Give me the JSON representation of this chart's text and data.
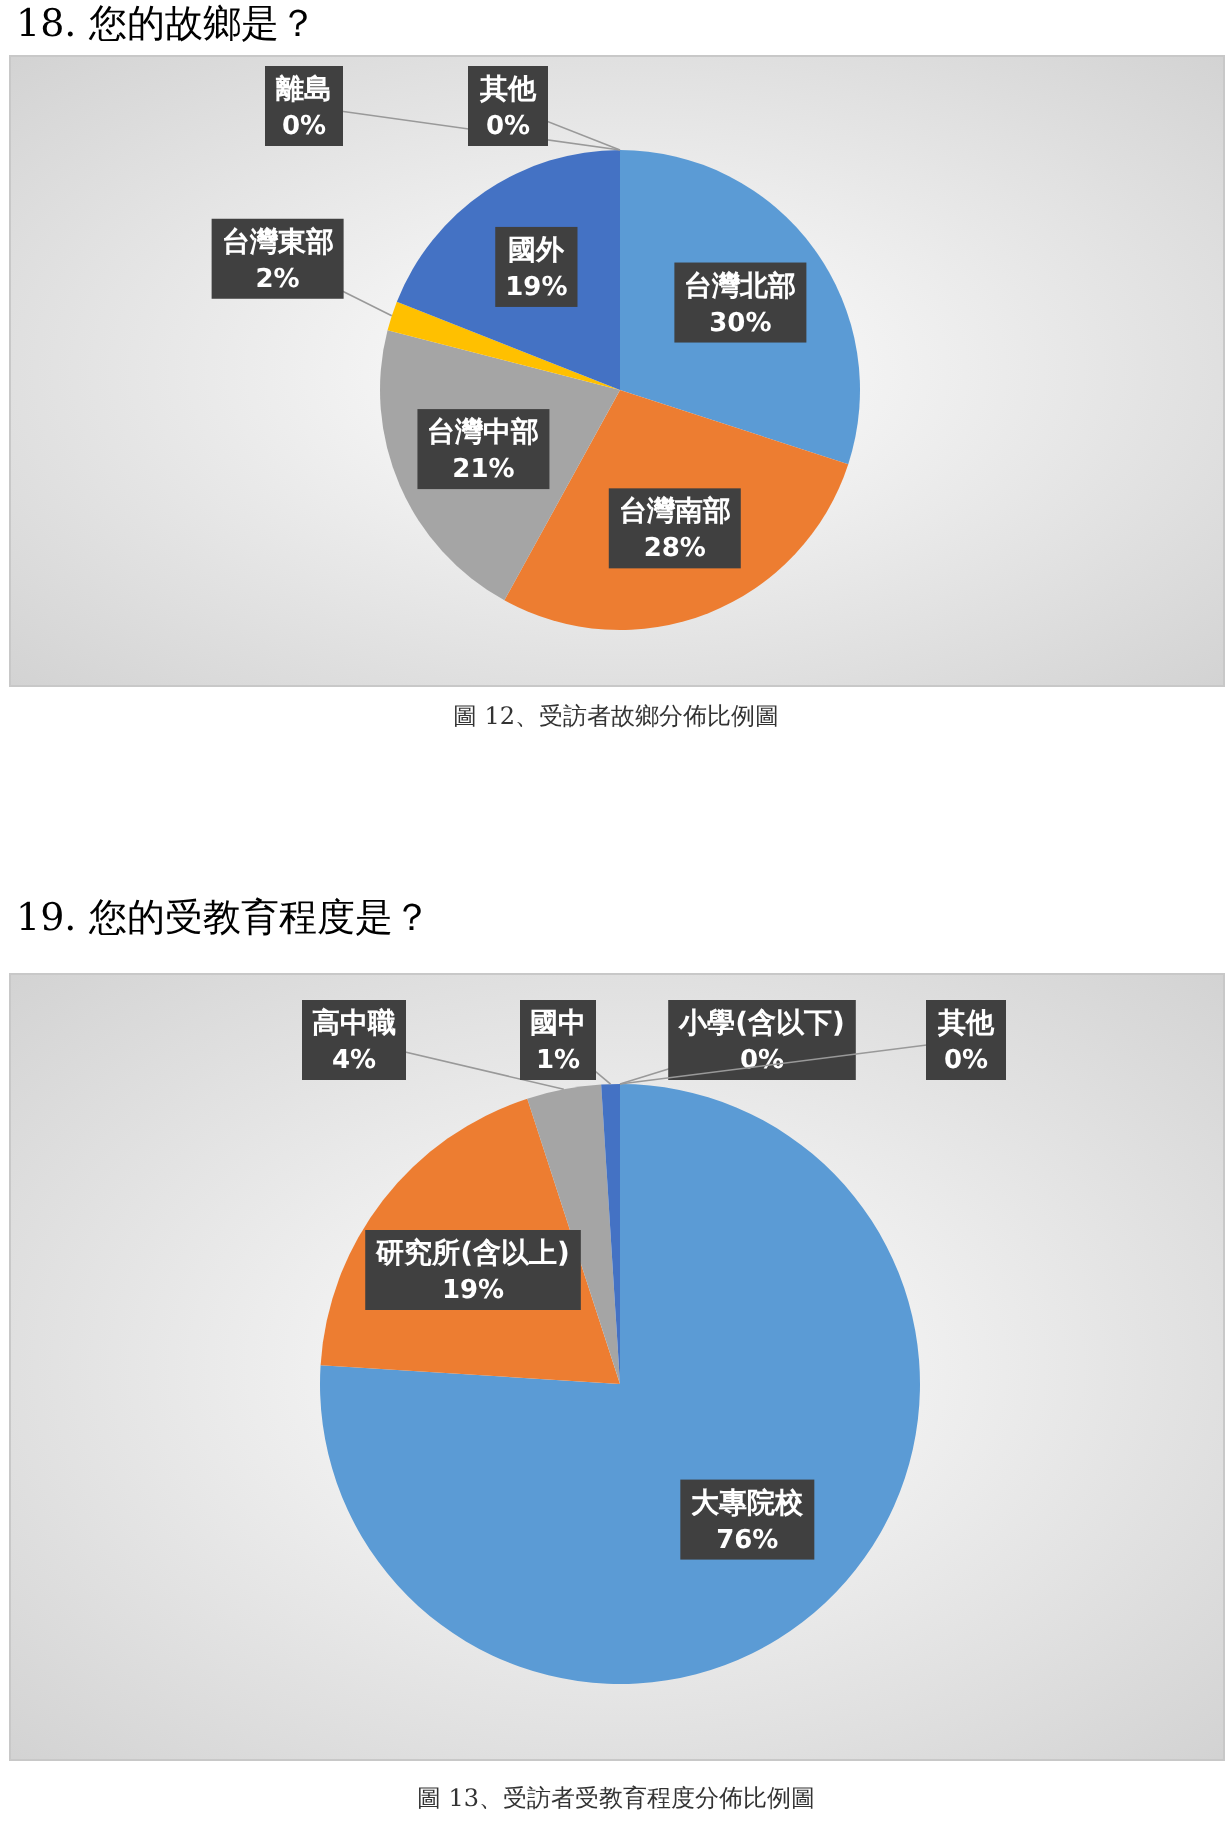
{
  "chart_data": [
    {
      "type": "pie",
      "title": "18. 您的故鄉是？",
      "categories": [
        "台灣北部",
        "台灣南部",
        "台灣中部",
        "台灣東部",
        "國外",
        "離島",
        "其他"
      ],
      "values": [
        30,
        28,
        21,
        2,
        19,
        0,
        0
      ],
      "colors": [
        "#5b9bd5",
        "#ed7d31",
        "#a5a5a5",
        "#ffc000",
        "#4472c4",
        "#70ad47",
        "#264478"
      ],
      "value_labels": [
        "30%",
        "28%",
        "21%",
        "2%",
        "19%",
        "0%",
        "0%"
      ],
      "annotations": [
        "圖 12、受訪者故鄉分佈比例圖"
      ]
    },
    {
      "type": "pie",
      "title": "19. 您的受教育程度是？",
      "categories": [
        "大專院校",
        "研究所(含以上)",
        "高中職",
        "國中",
        "小學(含以下)",
        "其他"
      ],
      "values": [
        76,
        19,
        4,
        1,
        0,
        0
      ],
      "colors": [
        "#5b9bd5",
        "#ed7d31",
        "#a5a5a5",
        "#4472c4",
        "#ffc000",
        "#70ad47"
      ],
      "value_labels": [
        "76%",
        "19%",
        "4%",
        "1%",
        "0%",
        "0%"
      ],
      "annotations": [
        "圖 13、受訪者受教育程度分佈比例圖"
      ]
    }
  ]
}
